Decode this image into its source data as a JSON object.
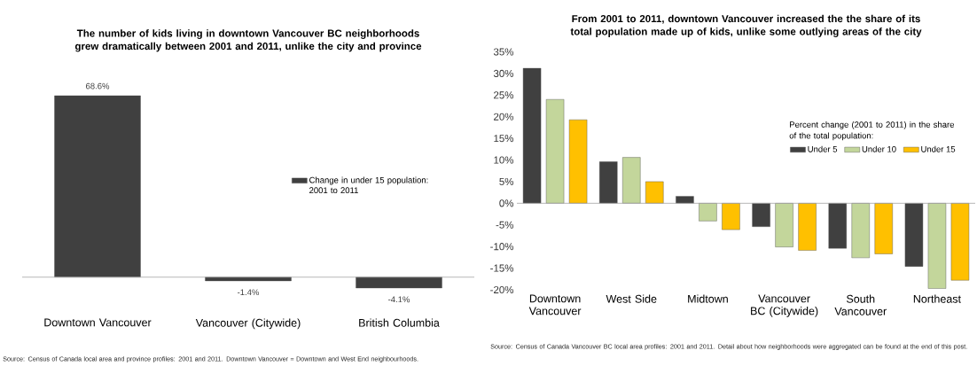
{
  "chart_data": [
    {
      "type": "bar",
      "title": "The number of kids living in downtown Vancouver BC neighborhoods grew dramatically between 2001 and 2011, unlike the city and province",
      "categories": [
        "Downtown Vancouver",
        "Vancouver (Citywide)",
        "British Columbia"
      ],
      "series": [
        {
          "name": "Change in under 15 population: 2001 to 2011",
          "color": "#404040",
          "values": [
            68.6,
            -1.4,
            -4.1
          ],
          "value_labels": [
            "68.6%",
            "-1.4%",
            "-4.1%"
          ]
        }
      ],
      "legend": "right",
      "tick_labels": "x",
      "annotations": [
        "Source: Census of Canada local area and province profiles: 2001 and 2011. Downtown Vancouver = Downtown and West End neighbourhoods."
      ]
    },
    {
      "type": "bar",
      "title": "From 2001 to 2011, downtown Vancouver increased the the share of its total population made up of kids, unlike some outlying areas of the city",
      "categories": [
        "Downtown Vancouver",
        "West Side",
        "Midtown",
        "Vancouver BC (Citywide)",
        "South Vancouver",
        "Northeast"
      ],
      "series": [
        {
          "name": "Under 5",
          "color": "#404040",
          "values": [
            31.2,
            9.6,
            1.6,
            -5.4,
            -10.4,
            -14.6
          ]
        },
        {
          "name": "Under 10",
          "color": "#c3d69b",
          "values": [
            24.0,
            10.6,
            -4.1,
            -10.1,
            -12.6,
            -19.7
          ]
        },
        {
          "name": "Under 15",
          "color": "#ffc000",
          "values": [
            19.3,
            5.0,
            -6.1,
            -10.9,
            -11.7,
            -17.8
          ]
        }
      ],
      "ylim": [
        -20,
        35
      ],
      "yticks": [
        {
          "value": -20,
          "label": "-20%"
        },
        {
          "value": -15,
          "label": "-15%"
        },
        {
          "value": -10,
          "label": "-10%"
        },
        {
          "value": -5,
          "label": "-5%"
        },
        {
          "value": 0,
          "label": "0%"
        },
        {
          "value": 5,
          "label": "5%"
        },
        {
          "value": 10,
          "label": "10%"
        },
        {
          "value": 15,
          "label": "15%"
        },
        {
          "value": 20,
          "label": "20%"
        },
        {
          "value": 25,
          "label": "25%"
        },
        {
          "value": 30,
          "label": "30%"
        },
        {
          "value": 35,
          "label": "35%"
        }
      ],
      "legend": "right",
      "legend_title": "Percent change (2001 to 2011)  in the share of the total population:",
      "annotations": [
        "Source: Census of Canada Vancouver BC local area profiles: 2001 and 2011. Detail about how neighborhoods were aggregated can be found at the end of this post."
      ]
    }
  ]
}
